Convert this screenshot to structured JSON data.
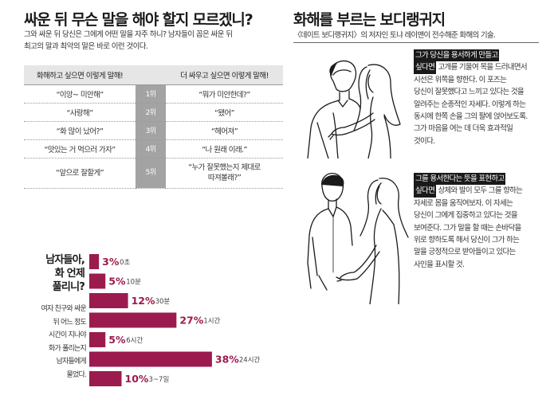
{
  "left": {
    "title": "싸운 뒤 무슨 말을 해야 할지 모르겠니?",
    "intro": [
      "그와 싸운 뒤 당신은 그에게 어떤 말을 자주 하니? 남자들이 꼽은 싸운 뒤",
      "최고의 말과 최악의 말은 바로 이런 것이다."
    ],
    "table": {
      "headers": [
        "화해하고 싶으면 이렇게 말해!",
        "더 싸우고 싶으면 이렇게 말해!"
      ],
      "rows": [
        {
          "good": "“이앙~ 미안해”",
          "rank": "1위",
          "bad": "“뭐가 미안한데?”"
        },
        {
          "good": "“사랑해”",
          "rank": "2위",
          "bad": "“됐어”"
        },
        {
          "good": "“화 많이 났어?”",
          "rank": "3위",
          "bad": "“헤어져”"
        },
        {
          "good": "“맛있는 거 먹으러 가자”",
          "rank": "4위",
          "bad": "“나 원래 이래.”"
        },
        {
          "good": "“앞으로 잘할게”",
          "rank": "5위",
          "bad_lines": [
            "“누가 잘못했는지 제대로",
            "따져볼래?”"
          ]
        }
      ]
    },
    "chart_title": [
      "남자들아,",
      "화 언제",
      "풀리니?"
    ],
    "chart_desc": [
      "여자 친구와 싸운",
      "뒤 어느 정도",
      "시간이 지나야",
      "화가 풀리는지",
      "남자들에게",
      "물었다."
    ]
  },
  "chart_data": {
    "type": "bar",
    "orientation": "horizontal",
    "categories": [
      "0초",
      "10분",
      "30분",
      "1시간",
      "6시간",
      "24시간",
      "3~7일"
    ],
    "values": [
      3,
      5,
      12,
      27,
      5,
      38,
      10
    ],
    "value_labels": [
      "3%",
      "5%",
      "12%",
      "27%",
      "5%",
      "38%",
      "10%"
    ],
    "unit": "%",
    "bar_color": "#9b1b4f",
    "title": "",
    "xlabel": "",
    "ylabel": ""
  },
  "right": {
    "title": "화해를 부르는 보디랭귀지",
    "subtitle": "〈데이트 보디랭귀지〉의 저자인 토냐 레이맨이 전수해준 화해의 기술.",
    "tips": [
      {
        "highlight": [
          "그가 당신을 용서하게 만들고",
          "싶다면"
        ],
        "text_first": " 고개를 기울여 목을 드러내면서",
        "lines": [
          "시선은 위쪽을 향한다. 이 포즈는",
          "당신이 잘못했다고 느끼고 있다는 것을",
          "알려주는 순종적인 자세다. 이렇게 하는",
          "동시에 한쪽 손을 그의 팔에 얹어보도록.",
          "그가 마음을 여는 데 더욱 효과적일",
          "것이다."
        ]
      },
      {
        "highlight": [
          "그를 용서한다는 뜻을 표현하고",
          "싶다면"
        ],
        "text_first": " 상체와 발이 모두 그를 향하는",
        "lines": [
          "자세로 몸을 움직여보자. 이 자세는",
          "당신이 그에게 집중하고 있다는 것을",
          "보여준다. 그가 말을 할 때는 손바닥을",
          "위로 향하도록 해서 당신이 그가 하는",
          "말을 긍정적으로 받아들이고 있다는",
          "사인을 표시할 것."
        ]
      }
    ]
  }
}
